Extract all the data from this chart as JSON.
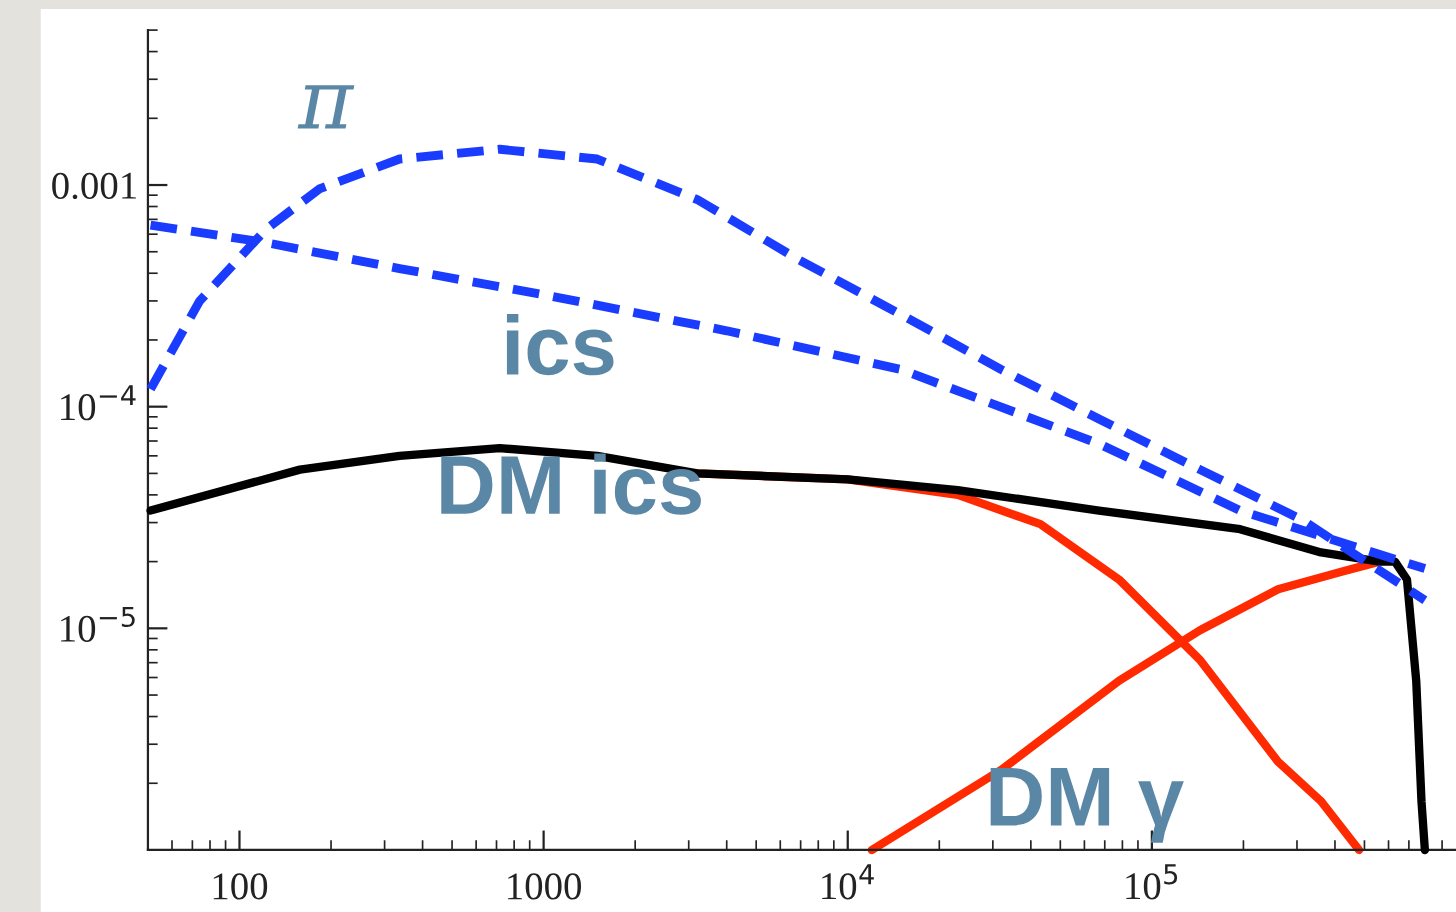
{
  "chart_data": {
    "type": "line",
    "log": "xy",
    "grid": false,
    "legend": false,
    "xlim": [
      50,
      1000000
    ],
    "ylim": [
      1e-06,
      0.005
    ],
    "xticks": [
      100,
      1000,
      {
        "value": 10000,
        "label": "10$^{4}$"
      },
      {
        "value": 100000,
        "label": "10$^{5}$"
      }
    ],
    "yticks": [
      {
        "value": 1e-05,
        "label": "10$^{−5}$"
      },
      {
        "value": 0.0001,
        "label": "10$^{−4}$"
      },
      0.001
    ],
    "series": [
      {
        "name": "π",
        "color": "#1a3cff",
        "line_style": "dashed",
        "x": [
          51,
          74,
          122,
          183,
          336,
          717,
          1500,
          3200,
          6900,
          15000,
          32000,
          67000,
          144000,
          310000,
          790000
        ],
        "values": [
          0.00012,
          0.0003,
          0.00063,
          0.00096,
          0.00131,
          0.00145,
          0.00131,
          0.00086,
          0.00046,
          0.00026,
          0.000147,
          8.8e-05,
          5.2e-05,
          3.1e-05,
          1.34e-05
        ]
      },
      {
        "name": "ics",
        "color": "#1a3cff",
        "line_style": "dashed",
        "x": [
          51,
          122,
          336,
          1000,
          4000,
          15000,
          67000,
          195000,
          790000
        ],
        "values": [
          0.00066,
          0.00055,
          0.00042,
          0.00032,
          0.00022,
          0.000147,
          6.8e-05,
          3.4e-05,
          1.86e-05
        ]
      },
      {
        "name": "DM ics",
        "color": "#ff2a00",
        "line_style": "solid",
        "x": [
          3200,
          10000,
          23000,
          43000,
          78000,
          144000,
          260000,
          360000,
          480000
        ],
        "values": [
          5e-05,
          4.7e-05,
          4e-05,
          2.95e-05,
          1.66e-05,
          7.2e-06,
          2.5e-06,
          1.66e-06,
          1e-06
        ]
      },
      {
        "name": "DM γ",
        "color": "#ff2a00",
        "line_style": "solid",
        "x": [
          12000,
          32000,
          78000,
          144000,
          260000,
          420000,
          560000
        ],
        "values": [
          1e-06,
          2.3e-06,
          5.8e-06,
          9.8e-06,
          1.5e-05,
          1.8e-05,
          2e-05
        ]
      },
      {
        "color": "#000000",
        "line_style": "solid",
        "x": [
          51,
          158,
          336,
          717,
          1500,
          3200,
          10000,
          23000,
          67000,
          195000,
          360000,
          560000,
          630000,
          690000,
          740000,
          770000,
          790000
        ],
        "values": [
          3.4e-05,
          5.2e-05,
          6e-05,
          6.5e-05,
          6e-05,
          5e-05,
          4.7e-05,
          4.2e-05,
          3.4e-05,
          2.8e-05,
          2.2e-05,
          2e-05,
          2e-05,
          1.66e-05,
          5.8e-06,
          1.66e-06,
          1e-06
        ]
      }
    ]
  }
}
